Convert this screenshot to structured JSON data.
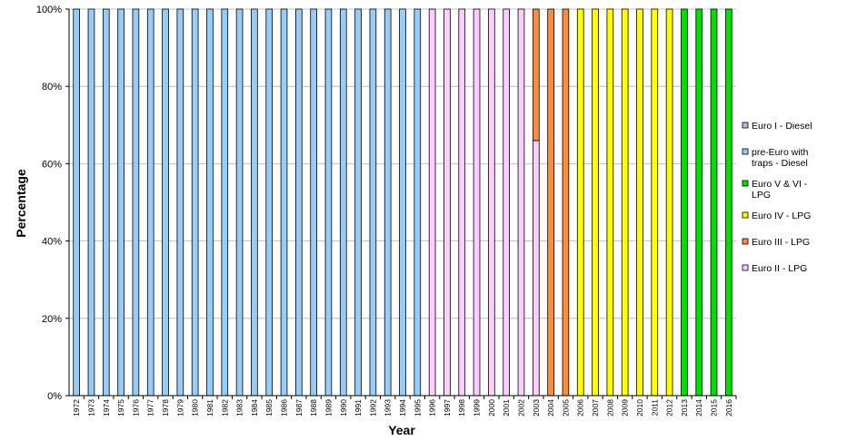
{
  "chart_data": {
    "type": "bar",
    "stacked": true,
    "title": "",
    "xlabel": "Year",
    "ylabel": "Percentage",
    "ylim": [
      0,
      100
    ],
    "yticks": [
      "0%",
      "20%",
      "40%",
      "60%",
      "80%",
      "100%"
    ],
    "grid": true,
    "legend_position": "right",
    "categories": [
      "1972",
      "1973",
      "1974",
      "1975",
      "1976",
      "1977",
      "1978",
      "1979",
      "1980",
      "1981",
      "1982",
      "1983",
      "1984",
      "1985",
      "1986",
      "1987",
      "1988",
      "1989",
      "1990",
      "1991",
      "1992",
      "1993",
      "1994",
      "1995",
      "1996",
      "1997",
      "1998",
      "1999",
      "2000",
      "2001",
      "2002",
      "2003",
      "2004",
      "2005",
      "2006",
      "2007",
      "2008",
      "2009",
      "2010",
      "2011",
      "2012",
      "2013",
      "2014",
      "2015",
      "2016"
    ],
    "series": [
      {
        "name": "Euro II - LPG",
        "color": "#ffccff",
        "values": [
          0,
          0,
          0,
          0,
          0,
          0,
          0,
          0,
          0,
          0,
          0,
          0,
          0,
          0,
          0,
          0,
          0,
          0,
          0,
          0,
          0,
          0,
          0,
          0,
          100,
          100,
          100,
          100,
          100,
          100,
          100,
          66,
          0,
          0,
          0,
          0,
          0,
          0,
          0,
          0,
          0,
          0,
          0,
          0,
          0
        ]
      },
      {
        "name": "Euro III - LPG",
        "color": "#ff8c3c",
        "values": [
          0,
          0,
          0,
          0,
          0,
          0,
          0,
          0,
          0,
          0,
          0,
          0,
          0,
          0,
          0,
          0,
          0,
          0,
          0,
          0,
          0,
          0,
          0,
          0,
          0,
          0,
          0,
          0,
          0,
          0,
          0,
          34,
          100,
          100,
          0,
          0,
          0,
          0,
          0,
          0,
          0,
          0,
          0,
          0,
          0
        ]
      },
      {
        "name": "Euro IV - LPG",
        "color": "#ffff00",
        "values": [
          0,
          0,
          0,
          0,
          0,
          0,
          0,
          0,
          0,
          0,
          0,
          0,
          0,
          0,
          0,
          0,
          0,
          0,
          0,
          0,
          0,
          0,
          0,
          0,
          0,
          0,
          0,
          0,
          0,
          0,
          0,
          0,
          0,
          0,
          100,
          100,
          100,
          100,
          100,
          100,
          100,
          0,
          0,
          0,
          0
        ]
      },
      {
        "name": "Euro V & VI - LPG",
        "color": "#00e000",
        "values": [
          0,
          0,
          0,
          0,
          0,
          0,
          0,
          0,
          0,
          0,
          0,
          0,
          0,
          0,
          0,
          0,
          0,
          0,
          0,
          0,
          0,
          0,
          0,
          0,
          0,
          0,
          0,
          0,
          0,
          0,
          0,
          0,
          0,
          0,
          0,
          0,
          0,
          0,
          0,
          0,
          0,
          100,
          100,
          100,
          100
        ]
      },
      {
        "name": "pre-Euro with traps - Diesel",
        "color": "#99ccf5",
        "values": [
          100,
          100,
          100,
          100,
          100,
          100,
          100,
          100,
          100,
          100,
          100,
          100,
          100,
          100,
          100,
          100,
          100,
          100,
          100,
          100,
          100,
          100,
          100,
          100,
          0,
          0,
          0,
          0,
          0,
          0,
          0,
          0,
          0,
          0,
          0,
          0,
          0,
          0,
          0,
          0,
          0,
          0,
          0,
          0,
          0
        ]
      },
      {
        "name": "Euro I - Diesel",
        "color": "#b8b8e8",
        "values": [
          0,
          0,
          0,
          0,
          0,
          0,
          0,
          0,
          0,
          0,
          0,
          0,
          0,
          0,
          0,
          0,
          0,
          0,
          0,
          0,
          0,
          0,
          0,
          0,
          0,
          0,
          0,
          0,
          0,
          0,
          0,
          0,
          0,
          0,
          0,
          0,
          0,
          0,
          0,
          0,
          0,
          0,
          0,
          0,
          0
        ]
      }
    ],
    "legend": [
      {
        "lines": [
          "Euro I - Diesel"
        ],
        "series": "Euro I - Diesel"
      },
      {
        "lines": [
          "pre-Euro with",
          "traps - Diesel"
        ],
        "series": "pre-Euro with traps - Diesel"
      },
      {
        "lines": [
          "Euro V & VI -",
          "LPG"
        ],
        "series": "Euro V & VI - LPG"
      },
      {
        "lines": [
          "Euro IV - LPG"
        ],
        "series": "Euro IV - LPG"
      },
      {
        "lines": [
          "Euro III - LPG"
        ],
        "series": "Euro III - LPG"
      },
      {
        "lines": [
          "Euro II - LPG"
        ],
        "series": "Euro II - LPG"
      }
    ]
  }
}
